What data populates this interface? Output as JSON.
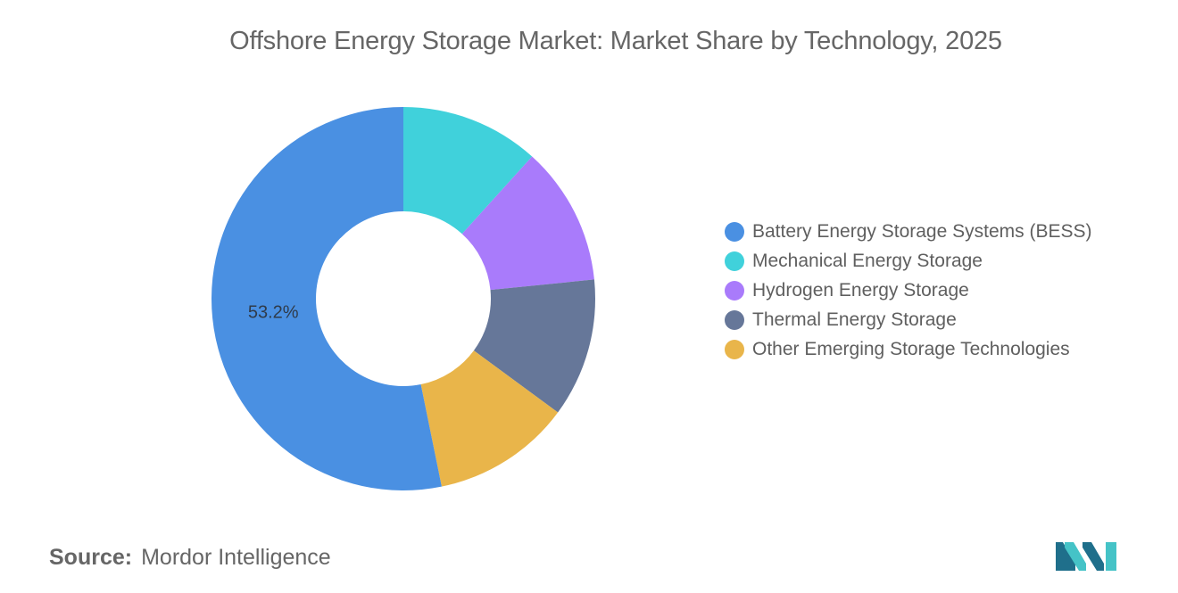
{
  "title": "Offshore Energy Storage Market: Market Share by Technology, 2025",
  "chart_data": {
    "type": "pie",
    "donut": true,
    "title": "Offshore Energy Storage Market: Market Share by Technology, 2025",
    "legend_position": "right",
    "series": [
      {
        "name": "Battery Energy Storage Systems (BESS)",
        "value": 53.2,
        "color": "#4a90e2",
        "label": "53.2%"
      },
      {
        "name": "Mechanical Energy Storage",
        "value": 11.7,
        "color": "#40d1db",
        "label": ""
      },
      {
        "name": "Hydrogen Energy Storage",
        "value": 11.7,
        "color": "#a97bfb",
        "label": ""
      },
      {
        "name": "Thermal Energy Storage",
        "value": 11.7,
        "color": "#667799",
        "label": ""
      },
      {
        "name": "Other Emerging Storage Technologies",
        "value": 11.7,
        "color": "#e9b54a",
        "label": ""
      }
    ]
  },
  "source": {
    "label": "Source:",
    "value": "Mordor Intelligence"
  },
  "logo": {
    "icon": "mordor-intelligence-logo-icon",
    "colors": [
      "#1f6f8b",
      "#45c3c7"
    ]
  }
}
